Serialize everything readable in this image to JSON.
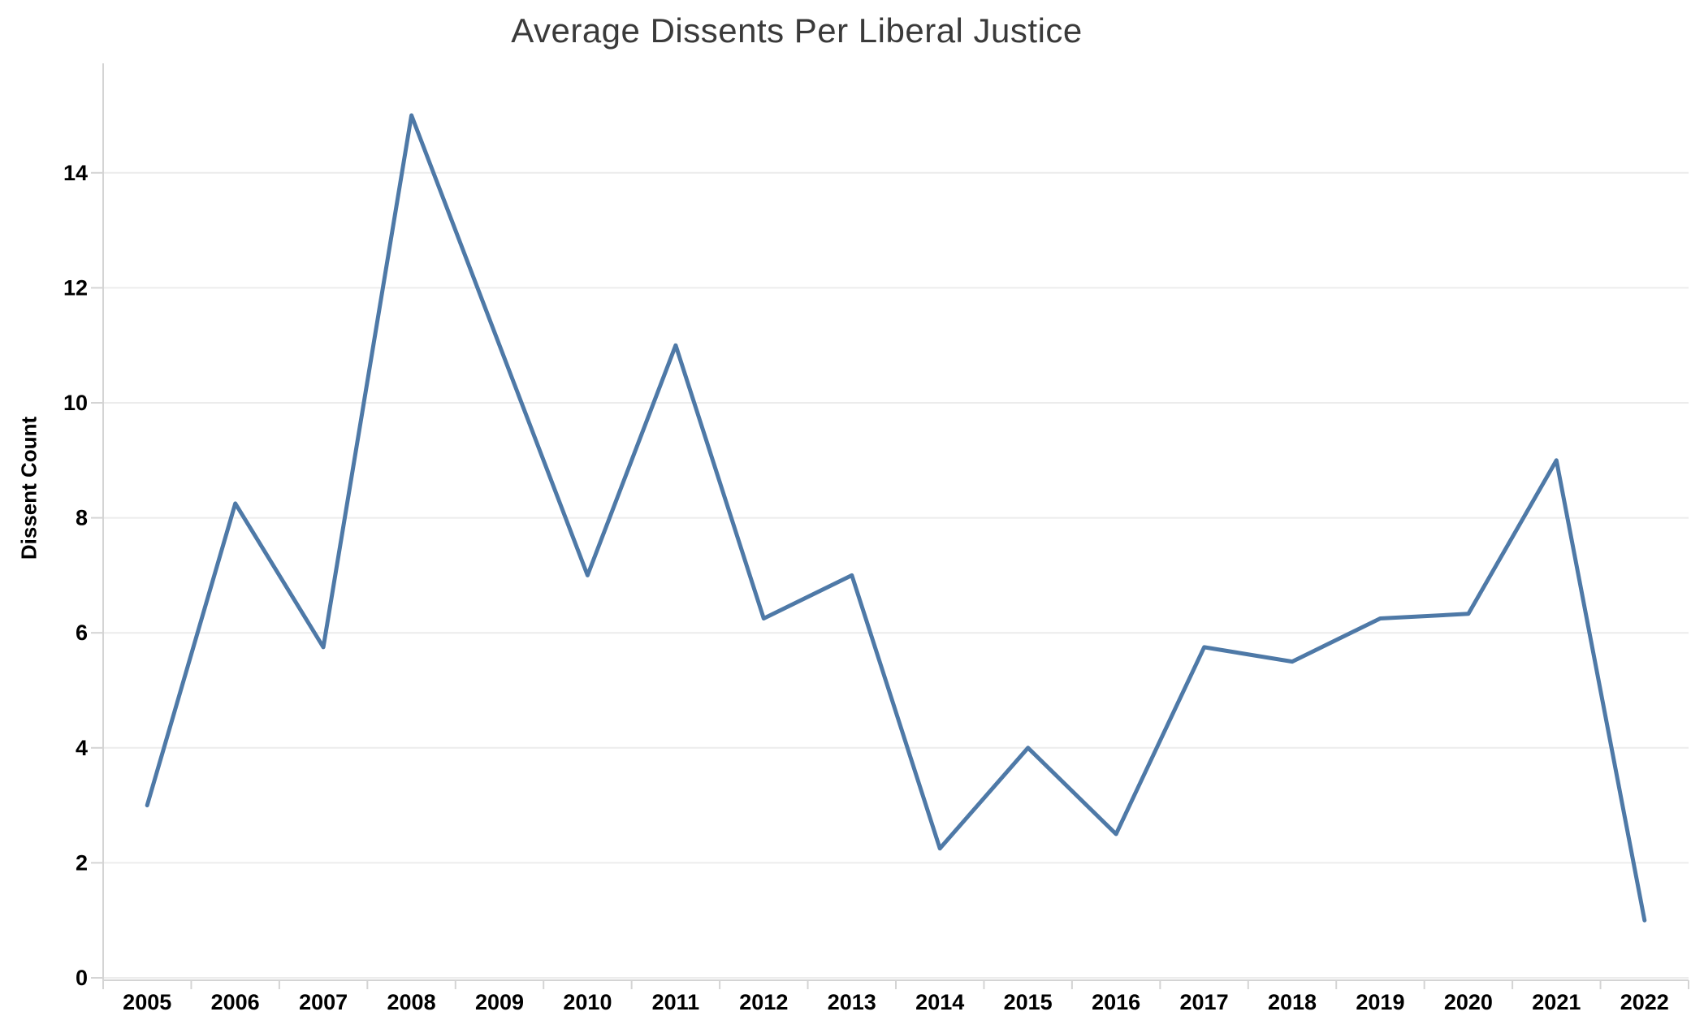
{
  "title": "Average Dissents Per Liberal Justice",
  "y_axis": {
    "label": "Dissent Count"
  },
  "chart_data": {
    "type": "line",
    "title": "Average Dissents Per Liberal Justice",
    "xlabel": "",
    "ylabel": "Dissent Count",
    "categories": [
      "2005",
      "2006",
      "2007",
      "2008",
      "2009",
      "2010",
      "2011",
      "2012",
      "2013",
      "2014",
      "2015",
      "2016",
      "2017",
      "2018",
      "2019",
      "2020",
      "2021",
      "2022"
    ],
    "values": [
      3,
      8.25,
      5.75,
      15,
      11,
      7,
      11,
      6.25,
      7,
      2.25,
      4,
      2.5,
      5.75,
      5.5,
      6.25,
      6.33,
      9,
      1
    ],
    "yticks": [
      0,
      2,
      4,
      6,
      8,
      10,
      12,
      14
    ],
    "ylim": [
      0,
      15.9
    ],
    "grid": "horizontal",
    "legend": "none",
    "line_color": "#4e79a7",
    "line_width": 5
  },
  "colors": {
    "line": "#4e79a7",
    "grid": "#ececec",
    "axis": "#d4d4d4",
    "tick_label": "#000000",
    "title": "#3a3a3a",
    "background": "#ffffff"
  }
}
